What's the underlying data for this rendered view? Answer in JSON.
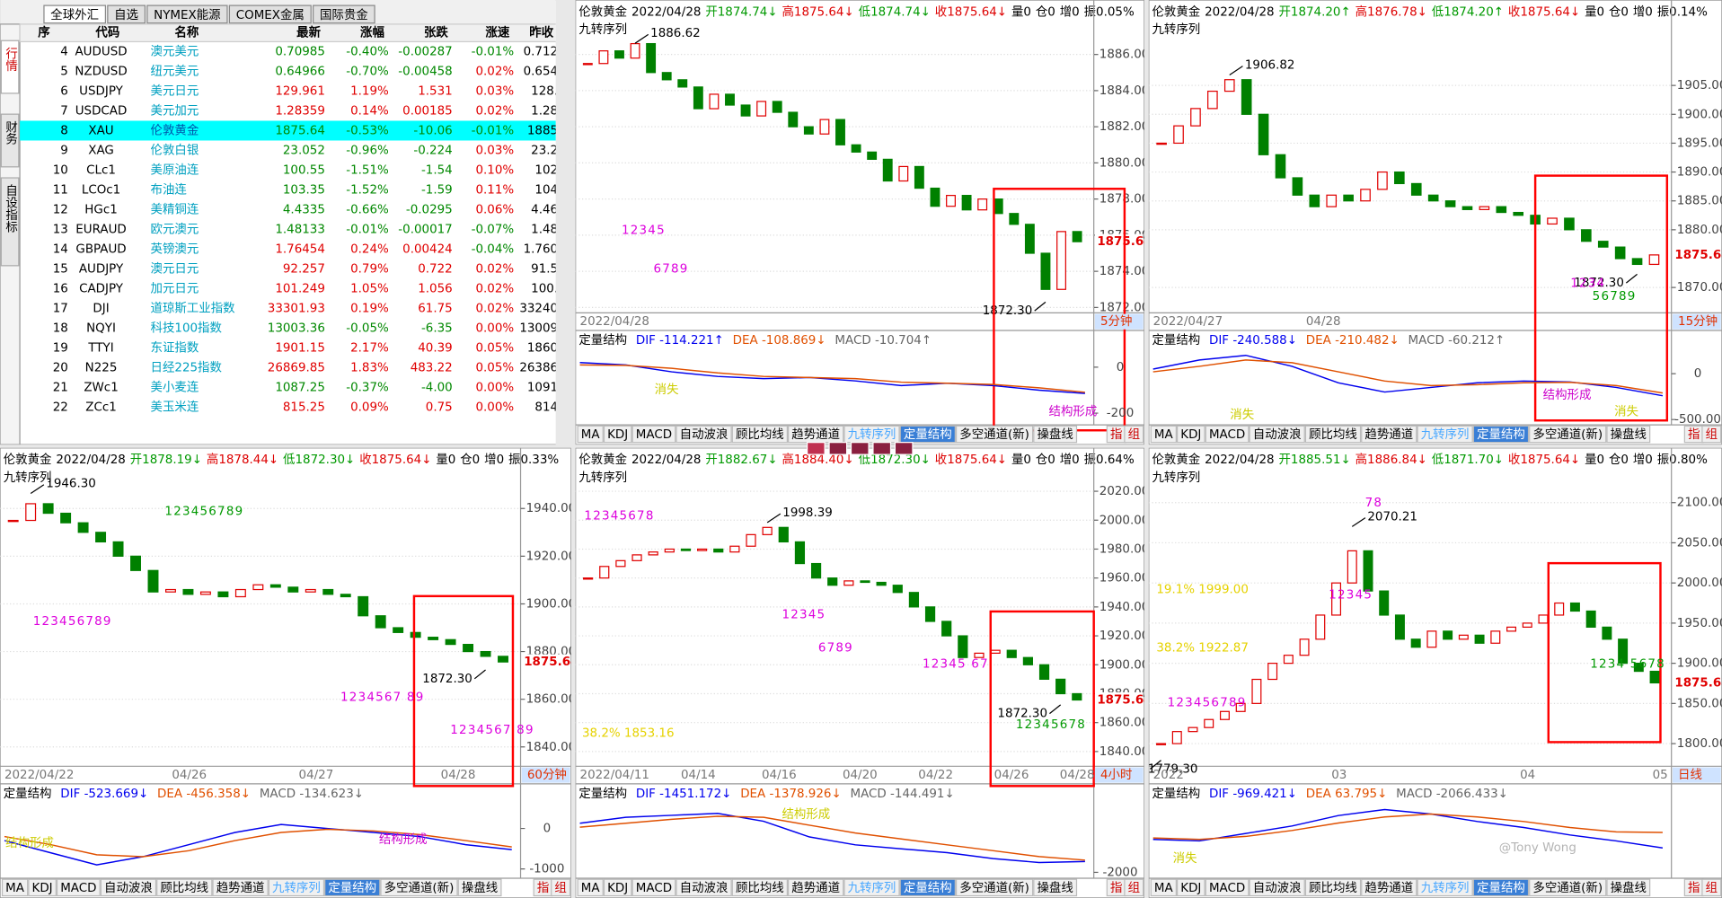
{
  "watchlist": {
    "tabs": [
      "全球外汇",
      "自选",
      "NYMEX能源",
      "COMEX金属",
      "国际贵金"
    ],
    "side_tabs": [
      "行情",
      "财务",
      "自设指标"
    ],
    "columns": [
      "序",
      "代码",
      "名称",
      "最新",
      "涨幅",
      "张跌",
      "涨速",
      "昨收"
    ],
    "selected": 4,
    "rows": [
      [
        "4",
        "AUDUSD",
        "澳元美元",
        "0.70985",
        "-0.40%",
        "-0.00287",
        "-0.01%",
        "0.712"
      ],
      [
        "5",
        "NZDUSD",
        "纽元美元",
        "0.64966",
        "-0.70%",
        "-0.00458",
        "0.02%",
        "0.654"
      ],
      [
        "6",
        "USDJPY",
        "美元日元",
        "129.961",
        "1.19%",
        "1.531",
        "0.03%",
        "128."
      ],
      [
        "7",
        "USDCAD",
        "美元加元",
        "1.28359",
        "0.14%",
        "0.00185",
        "0.02%",
        "1.28"
      ],
      [
        "8",
        "XAU",
        "伦敦黄金",
        "1875.64",
        "-0.53%",
        "-10.06",
        "-0.01%",
        "1885"
      ],
      [
        "9",
        "XAG",
        "伦敦白银",
        "23.052",
        "-0.96%",
        "-0.224",
        "0.03%",
        "23.2"
      ],
      [
        "10",
        "CLc1",
        "美原油连",
        "100.55",
        "-1.51%",
        "-1.54",
        "0.10%",
        "102"
      ],
      [
        "11",
        "LCOc1",
        "布油连",
        "103.35",
        "-1.52%",
        "-1.59",
        "0.11%",
        "104"
      ],
      [
        "12",
        "HGc1",
        "美精铜连",
        "4.4335",
        "-0.66%",
        "-0.0295",
        "0.06%",
        "4.46"
      ],
      [
        "13",
        "EURAUD",
        "欧元澳元",
        "1.48133",
        "-0.01%",
        "-0.00017",
        "-0.07%",
        "1.48"
      ],
      [
        "14",
        "GBPAUD",
        "英镑澳元",
        "1.76454",
        "0.24%",
        "0.00424",
        "-0.04%",
        "1.760"
      ],
      [
        "15",
        "AUDJPY",
        "澳元日元",
        "92.257",
        "0.79%",
        "0.722",
        "0.02%",
        "91.5"
      ],
      [
        "16",
        "CADJPY",
        "加元日元",
        "101.249",
        "1.05%",
        "1.056",
        "0.02%",
        "100."
      ],
      [
        "17",
        "DJI",
        "道琼斯工业指数",
        "33301.93",
        "0.19%",
        "61.75",
        "0.02%",
        "33240"
      ],
      [
        "18",
        "NQYI",
        "科技100指数",
        "13003.36",
        "-0.05%",
        "-6.35",
        "0.00%",
        "13009"
      ],
      [
        "19",
        "TTYI",
        "东证指数",
        "1901.15",
        "2.17%",
        "40.39",
        "0.05%",
        "1860"
      ],
      [
        "20",
        "N225",
        "日经225指数",
        "26869.85",
        "1.83%",
        "483.22",
        "0.05%",
        "26386"
      ],
      [
        "21",
        "ZWc1",
        "美小麦连",
        "1087.25",
        "-0.37%",
        "-4.00",
        "0.00%",
        "1091"
      ],
      [
        "22",
        "ZCc1",
        "美玉米连",
        "815.25",
        "0.09%",
        "0.75",
        "0.00%",
        "814"
      ]
    ]
  },
  "header_colors": [
    "#000000",
    "#000000",
    "#009900",
    "#dd0000",
    "#009900",
    "#dd0000",
    "#000000",
    "#000000",
    "#000000",
    "#000000"
  ],
  "tabs": [
    "MA",
    "KDJ",
    "MACD",
    "自动波浪",
    "顾比均线",
    "趋势通道",
    "九转序列",
    "定量结构",
    "多空通道(新)",
    "操盘线",
    "指",
    "组"
  ],
  "watermark": "@Tony Wong",
  "panels": [
    {
      "header": [
        "伦敦黄金",
        "2022/04/28",
        "开1874.74↓",
        "高1875.64↓",
        "低1874.74↓",
        "收1875.64↓",
        "量0",
        "仓0",
        "增0",
        "振0.05%"
      ],
      "indicator": "九转序列",
      "ylim": [
        1871.7,
        1887.8
      ],
      "yticks": [
        {
          "value": 1886,
          "label": "1886.00"
        },
        {
          "value": 1884,
          "label": "1884.00"
        },
        {
          "value": 1882,
          "label": "1882.00"
        },
        {
          "value": 1880,
          "label": "1880.00"
        },
        {
          "value": 1878,
          "label": "1878.00"
        },
        {
          "value": 1876,
          "label": "1876.00"
        },
        {
          "value": 1874,
          "label": "1874.00"
        },
        {
          "value": 1872,
          "label": "1872.00"
        }
      ],
      "closes": [
        1885.5,
        1886.2,
        1885.8,
        1886.6,
        1885.0,
        1884.6,
        1884.2,
        1883.0,
        1883.8,
        1883.2,
        1882.6,
        1883.4,
        1882.8,
        1882.0,
        1881.6,
        1882.4,
        1881.0,
        1880.6,
        1880.2,
        1879.0,
        1879.8,
        1878.6,
        1877.6,
        1878.2,
        1877.4,
        1878.0,
        1877.2,
        1876.6,
        1875.0,
        1873.0,
        1876.2,
        1875.64
      ],
      "high": 1886.62,
      "low": {
        "value": 1872.3,
        "label": "1872.30"
      },
      "last": 1875.64,
      "nines": [
        "12345",
        "6789"
      ],
      "dates": [
        "2022/04/28"
      ],
      "period": "5分钟",
      "macd": {
        "header": [
          "定量结构",
          "DIF -114.221↑",
          "DEA -108.869↓",
          "MACD -10.704↑"
        ],
        "ylim": [
          -251,
          74
        ],
        "ticks": [
          0,
          -200
        ],
        "dif": [
          20,
          10,
          -20,
          -40,
          -50,
          -45,
          -60,
          -80,
          -70,
          -80,
          -100,
          -114.221
        ],
        "dea": [
          10,
          8,
          -5,
          -25,
          -40,
          -45,
          -50,
          -65,
          -70,
          -75,
          -90,
          -108.869
        ],
        "notes": [
          "消失",
          "结构形成"
        ]
      }
    },
    {
      "header": [
        "伦敦黄金",
        "2022/04/28",
        "开1874.20↑",
        "高1876.78↓",
        "低1874.20↑",
        "收1875.64↓",
        "量0",
        "仓0",
        "增0",
        "振0.14%"
      ],
      "indicator": "九转序列",
      "ylim": [
        1865.6,
        1916.0
      ],
      "yticks": [
        {
          "value": 1905,
          "label": "1905.00"
        },
        {
          "value": 1900,
          "label": "1900.00"
        },
        {
          "value": 1895,
          "label": "1895.00"
        },
        {
          "value": 1890,
          "label": "1890.00"
        },
        {
          "value": 1885,
          "label": "1885.00"
        },
        {
          "value": 1880,
          "label": "1880.00"
        },
        {
          "value": 1870,
          "label": "1870.00"
        }
      ],
      "closes": [
        1895,
        1898,
        1901,
        1904,
        1906,
        1900,
        1893,
        1889,
        1886,
        1884,
        1886,
        1885,
        1887,
        1890,
        1888,
        1886,
        1885,
        1884,
        1883.5,
        1884,
        1883,
        1882.5,
        1881,
        1882,
        1880,
        1878,
        1877,
        1875,
        1874,
        1875.64
      ],
      "high": 1906.82,
      "low": {
        "value": 1872.3,
        "label": "1872.30"
      },
      "last": 1875.64,
      "nines": [
        "1234",
        "56789"
      ],
      "dates": [
        "2022/04/27",
        "04/28"
      ],
      "period": "15分钟",
      "macd": {
        "header": [
          "定量结构",
          "DIF -240.588↓",
          "DEA -210.482↓",
          "MACD -60.212↑"
        ],
        "ylim": [
          -558,
          256
        ],
        "ticks": [
          0,
          {
            "value": -500,
            "label": "-500.00"
          }
        ],
        "dif": [
          50,
          150,
          200,
          80,
          -100,
          -200,
          -150,
          -100,
          -80,
          -90,
          -150,
          -240.588
        ],
        "dea": [
          20,
          80,
          150,
          120,
          20,
          -80,
          -130,
          -120,
          -100,
          -95,
          -130,
          -210.482
        ],
        "notes": [
          "消失",
          "结构形成",
          "消失"
        ]
      }
    },
    {
      "header": [
        "伦敦黄金",
        "2022/04/28",
        "开1878.19↓",
        "高1878.44↓",
        "低1872.30↓",
        "收1875.64↓",
        "量0",
        "仓0",
        "增0",
        "振0.33%"
      ],
      "indicator": "九转序列",
      "ylim": [
        1831.9,
        1956.2
      ],
      "yticks": [
        {
          "value": 1940,
          "label": "1940.00"
        },
        {
          "value": 1920,
          "label": "1920.00"
        },
        {
          "value": 1900,
          "label": "1900.00"
        },
        {
          "value": 1880,
          "label": "1880.00"
        },
        {
          "value": 1860,
          "label": "1860.00"
        },
        {
          "value": 1840,
          "label": "1840.00"
        }
      ],
      "closes": [
        1935,
        1942,
        1938,
        1934,
        1930,
        1926,
        1920,
        1914,
        1905,
        1906,
        1904,
        1905,
        1903,
        1906,
        1908,
        1907,
        1905,
        1906,
        1904,
        1903,
        1895,
        1890,
        1888,
        1886,
        1885,
        1883,
        1880,
        1878,
        1875.64
      ],
      "high": {
        "value": 1946.3,
        "label": "1946.30"
      },
      "low": {
        "value": 1872.3,
        "label": "1872.30"
      },
      "last": 1875.64,
      "nines": [
        "123456789",
        "123456789",
        "1234567 89",
        "1234567 89"
      ],
      "dates": [
        "2022/04/22",
        "04/26",
        "04/27",
        "04/28"
      ],
      "period": "60分钟",
      "macd": {
        "header": [
          "定量结构",
          "DIF -523.669↓",
          "DEA -456.358↓",
          "MACD -134.623↓"
        ],
        "ylim": [
          -1231,
          615
        ],
        "ticks": [
          0,
          -1000
        ],
        "dif": [
          -300,
          -600,
          -900,
          -700,
          -400,
          -100,
          100,
          0,
          -100,
          -200,
          -400,
          -523.669
        ],
        "dea": [
          -200,
          -400,
          -650,
          -700,
          -550,
          -300,
          -100,
          -20,
          -60,
          -150,
          -300,
          -456.358
        ],
        "notes": [
          "结构形成",
          "结构形成"
        ]
      }
    },
    {
      "header": [
        "伦敦黄金",
        "2022/04/28",
        "开1882.67↓",
        "高1884.40↓",
        "低1872.30↓",
        "收1875.64↓",
        "量0",
        "仓0",
        "增0",
        "振0.64%"
      ],
      "indicator": "九转序列",
      "ylim": [
        1829.8,
        2034.8
      ],
      "yticks": [
        {
          "value": 2020,
          "label": "2020.00"
        },
        {
          "value": 2000,
          "label": "2000.00"
        },
        {
          "value": 1980,
          "label": "1980.00"
        },
        {
          "value": 1960,
          "label": "1960.00"
        },
        {
          "value": 1940,
          "label": "1940.00"
        },
        {
          "value": 1920,
          "label": "1920.00"
        },
        {
          "value": 1900,
          "label": "1900.00"
        },
        {
          "value": 1880,
          "label": "1880.00"
        },
        {
          "value": 1860,
          "label": "1860.00"
        },
        {
          "value": 1840,
          "label": "1840.00"
        }
      ],
      "closes": [
        1960,
        1968,
        1972,
        1976,
        1978,
        1980,
        1979,
        1980,
        1978,
        1982,
        1990,
        1995,
        1985,
        1970,
        1960,
        1955,
        1958,
        1957,
        1955,
        1950,
        1940,
        1930,
        1920,
        1905,
        1908,
        1910,
        1905,
        1900,
        1890,
        1880,
        1875.64
      ],
      "high": 1998.39,
      "low": {
        "value": 1872.3,
        "label": "1872.30"
      },
      "last": 1875.64,
      "fib": [
        "38.2% 1853.16"
      ],
      "nines": [
        "12345678",
        "12345",
        "6789",
        "12345 67",
        "12345678"
      ],
      "dates": [
        "2022/04/11",
        "04/14",
        "04/16",
        "04/20",
        "04/22",
        "04/26",
        "04/28"
      ],
      "period": "4小时",
      "macd": {
        "header": [
          "定量结构",
          "DIF -1451.172↓",
          "DEA -1378.926↓",
          "MACD -144.491↓"
        ],
        "ylim": [
          -2300,
          1500
        ],
        "ticks": [
          -2000
        ],
        "dif": [
          500,
          800,
          900,
          1000,
          600,
          -200,
          -600,
          -800,
          -1000,
          -1300,
          -1500,
          -1451.172
        ],
        "dea": [
          300,
          500,
          700,
          850,
          800,
          400,
          0,
          -300,
          -600,
          -900,
          -1200,
          -1378.926
        ],
        "notes": [
          "结构形成"
        ]
      }
    },
    {
      "header": [
        "伦敦黄金",
        "2022/04/28",
        "开1885.51↓",
        "高1886.84↓",
        "低1871.70↓",
        "收1875.64↓",
        "量0",
        "仓0",
        "增0",
        "振0.80%"
      ],
      "indicator": "九转序列",
      "ylim": [
        1771.8,
        2140.8
      ],
      "yticks": [
        {
          "value": 2100,
          "label": "2100.00"
        },
        {
          "value": 2050,
          "label": "2050.00"
        },
        {
          "value": 2000,
          "label": "2000.00"
        },
        {
          "value": 1950,
          "label": "1950.00"
        },
        {
          "value": 1900,
          "label": "1900.00"
        },
        {
          "value": 1850,
          "label": "1850.00"
        },
        {
          "value": 1800,
          "label": "1800.00"
        }
      ],
      "closes": [
        1800,
        1815,
        1820,
        1830,
        1840,
        1850,
        1880,
        1900,
        1910,
        1930,
        1960,
        2000,
        2040,
        1990,
        1960,
        1930,
        1920,
        1940,
        1930,
        1935,
        1925,
        1940,
        1945,
        1950,
        1960,
        1975,
        1965,
        1945,
        1930,
        1900,
        1890,
        1875.64
      ],
      "high": 2070.21,
      "low": {
        "value": 1779.3,
        "label": "1779.30"
      },
      "last": 1875.64,
      "fib": [
        "19.1% 1999.00",
        "38.2% 1922.87"
      ],
      "nines": [
        "78",
        "12345",
        "123456789",
        "1234 5678"
      ],
      "dates": [
        "2022",
        "03",
        "04",
        "05"
      ],
      "period": "日线",
      "macd": {
        "header": [
          "定量结构",
          "DIF -969.421↓",
          "DEA 63.795↓",
          "MACD -2066.433↓"
        ],
        "ylim": [
          -3000,
          2000
        ],
        "ticks": [],
        "dif": [
          -400,
          -500,
          0,
          500,
          1200,
          1600,
          1300,
          800,
          400,
          -100,
          -500,
          -969.421
        ],
        "dea": [
          -300,
          -400,
          -200,
          200,
          700,
          1100,
          1300,
          1100,
          800,
          400,
          100,
          63.795
        ],
        "notes": [
          "消失"
        ]
      }
    }
  ]
}
